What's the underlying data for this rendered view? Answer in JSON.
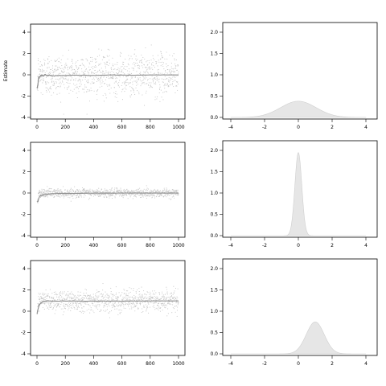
{
  "chart_data": {
    "type": "scatter",
    "ylabel": "Estimate",
    "panels": [
      {
        "row": 1,
        "trace": {
          "type": "scatter",
          "xlim": [
            0,
            1000
          ],
          "ylim": [
            -4,
            4
          ],
          "xticks": [
            0,
            200,
            400,
            600,
            800,
            1000
          ],
          "yticks": [
            -4,
            -2,
            0,
            2,
            4
          ],
          "n_draws": 1000,
          "spread": 1.0,
          "running_mean": 0.0
        },
        "density": {
          "type": "area",
          "xlim": [
            -4,
            4
          ],
          "ylim": [
            0,
            2.0
          ],
          "xticks": [
            -4,
            -2,
            0,
            2,
            4
          ],
          "yticks": [
            0.0,
            0.5,
            1.0,
            1.5,
            2.0
          ],
          "center": 0.0,
          "peak": 0.38
        }
      },
      {
        "row": 2,
        "trace": {
          "type": "scatter",
          "xlim": [
            0,
            1000
          ],
          "ylim": [
            -4,
            4
          ],
          "xticks": [
            0,
            200,
            400,
            600,
            800,
            1000
          ],
          "yticks": [
            -4,
            -2,
            0,
            2,
            4
          ],
          "n_draws": 1000,
          "spread": 0.2,
          "running_mean": 0.0
        },
        "density": {
          "type": "area",
          "xlim": [
            -4,
            4
          ],
          "ylim": [
            0,
            2.0
          ],
          "xticks": [
            -4,
            -2,
            0,
            2,
            4
          ],
          "yticks": [
            0.0,
            0.5,
            1.0,
            1.5,
            2.0
          ],
          "center": 0.0,
          "peak": 1.95
        }
      },
      {
        "row": 3,
        "trace": {
          "type": "scatter",
          "xlim": [
            0,
            1000
          ],
          "ylim": [
            -4,
            4
          ],
          "xticks": [
            0,
            200,
            400,
            600,
            800,
            1000
          ],
          "yticks": [
            -4,
            -2,
            0,
            2,
            4
          ],
          "n_draws": 1000,
          "spread": 0.5,
          "running_mean": 1.0
        },
        "density": {
          "type": "area",
          "xlim": [
            -4,
            4
          ],
          "ylim": [
            0,
            2.0
          ],
          "xticks": [
            -4,
            -2,
            0,
            2,
            4
          ],
          "yticks": [
            0.0,
            0.5,
            1.0,
            1.5,
            2.0
          ],
          "center": 1.0,
          "peak": 0.75
        }
      }
    ]
  }
}
